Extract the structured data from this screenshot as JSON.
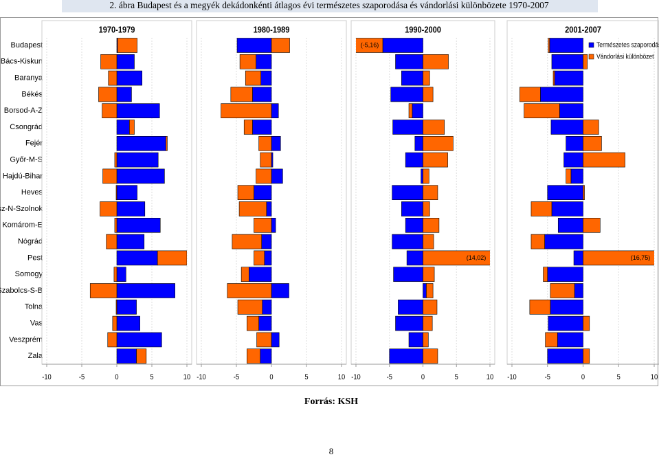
{
  "title": "2. ábra Budapest és a megyék dekádonkénti átlagos évi természetes szaporodása és vándorlási különbözete 1970-2007",
  "categories": [
    "Budapest",
    "Bács-Kiskun",
    "Baranya",
    "Békés",
    "Borsod-A-Z",
    "Csongrád",
    "Fejér",
    "Győr-M-S",
    "Hajdú-Bihar",
    "Heves",
    "Jász-N-Szolnok",
    "Komárom-E",
    "Nógrád",
    "Pest",
    "Somogy",
    "Szabolcs-S-B",
    "Tolna",
    "Vas",
    "Veszprém",
    "Zala"
  ],
  "chart_data": [
    {
      "type": "bar",
      "subtitle": "1970-1979",
      "xlim": [
        -10,
        10
      ],
      "xticks": [
        -10,
        -5,
        0,
        5,
        10
      ],
      "grid": true,
      "series": [
        {
          "name": "Természetes szaporodás",
          "color": "#0000ff",
          "values": [
            0.1,
            2.5,
            3.6,
            2.1,
            6.1,
            1.8,
            7.0,
            5.9,
            6.8,
            2.9,
            4.0,
            6.2,
            3.9,
            5.8,
            1.3,
            8.3,
            2.8,
            3.3,
            6.4,
            2.8
          ]
        },
        {
          "name": "Vándorlási különbözet",
          "color": "#ff6600",
          "values": [
            2.8,
            -2.3,
            -1.2,
            -2.6,
            -2.1,
            0.7,
            0.2,
            -0.3,
            -2.0,
            -0.1,
            -2.4,
            -0.3,
            -1.5,
            4.2,
            -0.4,
            -3.8,
            -0.1,
            -0.6,
            -1.3,
            1.4
          ]
        }
      ]
    },
    {
      "type": "bar",
      "subtitle": "1980-1989",
      "xlim": [
        -10,
        10
      ],
      "xticks": [
        -10,
        -5,
        0,
        5,
        10
      ],
      "grid": true,
      "series": [
        {
          "name": "Természetes szaporodás",
          "color": "#0000ff",
          "values": [
            -4.9,
            -2.2,
            -1.5,
            -2.7,
            1.0,
            -2.7,
            1.3,
            0.2,
            1.6,
            -2.5,
            -0.7,
            0.6,
            -1.4,
            -1.0,
            -3.2,
            2.5,
            -1.3,
            -1.8,
            1.1,
            -1.6
          ]
        },
        {
          "name": "Vándorlási különbözet",
          "color": "#ff6600",
          "values": [
            2.6,
            -2.3,
            -2.2,
            -3.1,
            -7.2,
            -1.2,
            -1.8,
            -1.6,
            -2.2,
            -2.3,
            -3.9,
            -2.5,
            -4.2,
            -1.5,
            -1.1,
            -6.3,
            -3.5,
            -1.7,
            -2.1,
            -1.9
          ]
        }
      ]
    },
    {
      "type": "bar",
      "subtitle": "1990-2000",
      "xlim": [
        -10,
        10
      ],
      "xticks": [
        -10,
        -5,
        0,
        5,
        10
      ],
      "grid": true,
      "series": [
        {
          "name": "Természetes szaporodás",
          "color": "#0000ff",
          "values": [
            -6.0,
            -4.1,
            -3.2,
            -4.8,
            -1.6,
            -4.5,
            -1.2,
            -2.6,
            -0.3,
            -4.6,
            -3.2,
            -2.6,
            -4.6,
            -2.4,
            -4.4,
            0.5,
            -3.7,
            -4.1,
            -2.1,
            -5.0
          ]
        },
        {
          "name": "Vándorlási különbözet",
          "color": "#ff6600",
          "values": [
            -5.16,
            3.8,
            1.0,
            1.5,
            -0.5,
            3.2,
            4.5,
            3.7,
            0.9,
            2.2,
            1.0,
            2.4,
            1.6,
            14.02,
            1.7,
            1.0,
            2.1,
            1.4,
            0.8,
            2.2
          ],
          "value_labels": [
            "(-5,16)",
            null,
            null,
            null,
            null,
            null,
            null,
            null,
            null,
            null,
            null,
            null,
            null,
            "(14,02)",
            null,
            null,
            null,
            null,
            null,
            null
          ]
        }
      ]
    },
    {
      "type": "bar",
      "subtitle": "2001-2007",
      "xlim": [
        -10,
        10
      ],
      "xticks": [
        -10,
        -5,
        0,
        5,
        10
      ],
      "grid": true,
      "series": [
        {
          "name": "Természetes szaporodás",
          "color": "#0000ff",
          "values": [
            -4.7,
            -4.4,
            -4.0,
            -6.0,
            -3.3,
            -4.5,
            -2.4,
            -2.7,
            -1.7,
            -5.0,
            -4.4,
            -3.5,
            -5.4,
            -1.3,
            -5.0,
            -1.2,
            -4.6,
            -4.9,
            -3.6,
            -5.0
          ]
        },
        {
          "name": "Vándorlási különbözet",
          "color": "#ff6600",
          "values": [
            -0.2,
            0.6,
            -0.2,
            -2.9,
            -5.0,
            2.2,
            2.6,
            5.9,
            -0.7,
            0.2,
            -2.9,
            2.4,
            -1.9,
            16.75,
            -0.6,
            -3.4,
            -2.9,
            0.9,
            -1.7,
            0.9
          ],
          "value_labels": [
            null,
            null,
            null,
            null,
            null,
            null,
            null,
            null,
            null,
            null,
            null,
            null,
            null,
            "(16,75)",
            null,
            null,
            null,
            null,
            null,
            null
          ]
        }
      ]
    }
  ],
  "footer": "Forrás: KSH",
  "page_number": "8"
}
